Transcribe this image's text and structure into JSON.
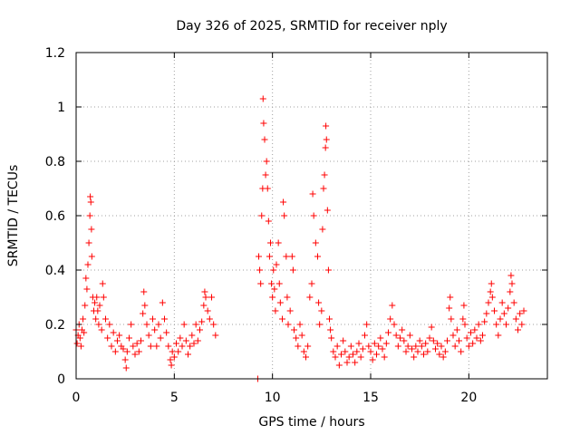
{
  "chart_data": {
    "type": "scatter",
    "title": "Day 326 of 2025, SRMTID for receiver nply",
    "xlabel": "GPS time / hours",
    "ylabel": "SRMTID / TECUs",
    "xlim": [
      0,
      24
    ],
    "ylim": [
      0,
      1.2
    ],
    "xticks": [
      0,
      5,
      10,
      15,
      20
    ],
    "xtick_labels": [
      "0",
      "5",
      "10",
      "15",
      "20"
    ],
    "yticks": [
      0,
      0.2,
      0.4,
      0.6,
      0.8,
      1,
      1.2
    ],
    "ytick_labels": [
      "0",
      "0.2",
      "0.4",
      "0.6",
      "0.8",
      "1",
      "1.2"
    ],
    "grid": true,
    "marker_color": "#ff0000",
    "series": [
      {
        "name": "SRMTID",
        "marker": "+",
        "points": [
          [
            0.0,
            0.18
          ],
          [
            0.05,
            0.13
          ],
          [
            0.1,
            0.16
          ],
          [
            0.15,
            0.2
          ],
          [
            0.2,
            0.15
          ],
          [
            0.25,
            0.12
          ],
          [
            0.3,
            0.18
          ],
          [
            0.35,
            0.22
          ],
          [
            0.4,
            0.17
          ],
          [
            0.45,
            0.27
          ],
          [
            0.5,
            0.37
          ],
          [
            0.55,
            0.33
          ],
          [
            0.6,
            0.42
          ],
          [
            0.65,
            0.5
          ],
          [
            0.7,
            0.6
          ],
          [
            0.72,
            0.67
          ],
          [
            0.75,
            0.65
          ],
          [
            0.78,
            0.55
          ],
          [
            0.8,
            0.45
          ],
          [
            0.85,
            0.3
          ],
          [
            0.9,
            0.25
          ],
          [
            0.95,
            0.28
          ],
          [
            1.0,
            0.22
          ],
          [
            1.05,
            0.3
          ],
          [
            1.1,
            0.25
          ],
          [
            1.15,
            0.2
          ],
          [
            1.2,
            0.27
          ],
          [
            1.3,
            0.18
          ],
          [
            1.35,
            0.35
          ],
          [
            1.4,
            0.3
          ],
          [
            1.5,
            0.22
          ],
          [
            1.6,
            0.15
          ],
          [
            1.7,
            0.2
          ],
          [
            1.8,
            0.12
          ],
          [
            1.9,
            0.17
          ],
          [
            2.0,
            0.1
          ],
          [
            2.1,
            0.14
          ],
          [
            2.2,
            0.16
          ],
          [
            2.3,
            0.12
          ],
          [
            2.4,
            0.11
          ],
          [
            2.5,
            0.07
          ],
          [
            2.55,
            0.04
          ],
          [
            2.6,
            0.1
          ],
          [
            2.7,
            0.15
          ],
          [
            2.8,
            0.2
          ],
          [
            2.9,
            0.12
          ],
          [
            3.0,
            0.09
          ],
          [
            3.1,
            0.13
          ],
          [
            3.2,
            0.1
          ],
          [
            3.3,
            0.14
          ],
          [
            3.4,
            0.24
          ],
          [
            3.45,
            0.32
          ],
          [
            3.5,
            0.27
          ],
          [
            3.6,
            0.2
          ],
          [
            3.7,
            0.16
          ],
          [
            3.8,
            0.12
          ],
          [
            3.9,
            0.22
          ],
          [
            4.0,
            0.18
          ],
          [
            4.1,
            0.12
          ],
          [
            4.2,
            0.2
          ],
          [
            4.3,
            0.15
          ],
          [
            4.4,
            0.28
          ],
          [
            4.5,
            0.22
          ],
          [
            4.6,
            0.17
          ],
          [
            4.7,
            0.12
          ],
          [
            4.8,
            0.07
          ],
          [
            4.85,
            0.05
          ],
          [
            4.9,
            0.1
          ],
          [
            5.0,
            0.08
          ],
          [
            5.1,
            0.13
          ],
          [
            5.2,
            0.1
          ],
          [
            5.3,
            0.15
          ],
          [
            5.4,
            0.12
          ],
          [
            5.5,
            0.2
          ],
          [
            5.6,
            0.14
          ],
          [
            5.7,
            0.09
          ],
          [
            5.8,
            0.12
          ],
          [
            5.9,
            0.16
          ],
          [
            6.0,
            0.13
          ],
          [
            6.1,
            0.2
          ],
          [
            6.2,
            0.14
          ],
          [
            6.3,
            0.18
          ],
          [
            6.4,
            0.21
          ],
          [
            6.5,
            0.27
          ],
          [
            6.55,
            0.32
          ],
          [
            6.6,
            0.3
          ],
          [
            6.7,
            0.25
          ],
          [
            6.8,
            0.22
          ],
          [
            6.9,
            0.3
          ],
          [
            7.0,
            0.2
          ],
          [
            7.1,
            0.16
          ],
          [
            9.25,
            0.0
          ],
          [
            9.3,
            0.45
          ],
          [
            9.35,
            0.4
          ],
          [
            9.4,
            0.35
          ],
          [
            9.45,
            0.6
          ],
          [
            9.5,
            0.7
          ],
          [
            9.52,
            1.03
          ],
          [
            9.55,
            0.94
          ],
          [
            9.6,
            0.88
          ],
          [
            9.65,
            0.75
          ],
          [
            9.7,
            0.8
          ],
          [
            9.75,
            0.7
          ],
          [
            9.8,
            0.58
          ],
          [
            9.85,
            0.45
          ],
          [
            9.9,
            0.5
          ],
          [
            9.95,
            0.35
          ],
          [
            10.0,
            0.3
          ],
          [
            10.05,
            0.4
          ],
          [
            10.1,
            0.33
          ],
          [
            10.15,
            0.25
          ],
          [
            10.2,
            0.42
          ],
          [
            10.3,
            0.5
          ],
          [
            10.35,
            0.35
          ],
          [
            10.4,
            0.28
          ],
          [
            10.5,
            0.22
          ],
          [
            10.55,
            0.65
          ],
          [
            10.6,
            0.6
          ],
          [
            10.7,
            0.45
          ],
          [
            10.75,
            0.3
          ],
          [
            10.8,
            0.2
          ],
          [
            10.9,
            0.25
          ],
          [
            11.0,
            0.45
          ],
          [
            11.05,
            0.4
          ],
          [
            11.1,
            0.18
          ],
          [
            11.2,
            0.15
          ],
          [
            11.3,
            0.12
          ],
          [
            11.4,
            0.2
          ],
          [
            11.5,
            0.16
          ],
          [
            11.6,
            0.1
          ],
          [
            11.7,
            0.08
          ],
          [
            11.8,
            0.12
          ],
          [
            11.9,
            0.3
          ],
          [
            12.0,
            0.35
          ],
          [
            12.05,
            0.68
          ],
          [
            12.1,
            0.6
          ],
          [
            12.2,
            0.5
          ],
          [
            12.3,
            0.45
          ],
          [
            12.35,
            0.28
          ],
          [
            12.4,
            0.2
          ],
          [
            12.5,
            0.25
          ],
          [
            12.55,
            0.55
          ],
          [
            12.6,
            0.7
          ],
          [
            12.65,
            0.75
          ],
          [
            12.7,
            0.85
          ],
          [
            12.72,
            0.93
          ],
          [
            12.75,
            0.88
          ],
          [
            12.8,
            0.62
          ],
          [
            12.85,
            0.4
          ],
          [
            12.9,
            0.22
          ],
          [
            12.95,
            0.18
          ],
          [
            13.0,
            0.15
          ],
          [
            13.1,
            0.1
          ],
          [
            13.2,
            0.08
          ],
          [
            13.3,
            0.12
          ],
          [
            13.4,
            0.05
          ],
          [
            13.5,
            0.09
          ],
          [
            13.6,
            0.14
          ],
          [
            13.7,
            0.1
          ],
          [
            13.8,
            0.06
          ],
          [
            13.9,
            0.08
          ],
          [
            14.0,
            0.12
          ],
          [
            14.1,
            0.09
          ],
          [
            14.2,
            0.06
          ],
          [
            14.3,
            0.1
          ],
          [
            14.4,
            0.13
          ],
          [
            14.5,
            0.08
          ],
          [
            14.6,
            0.11
          ],
          [
            14.7,
            0.16
          ],
          [
            14.8,
            0.2
          ],
          [
            14.9,
            0.12
          ],
          [
            15.0,
            0.1
          ],
          [
            15.1,
            0.07
          ],
          [
            15.2,
            0.13
          ],
          [
            15.3,
            0.09
          ],
          [
            15.4,
            0.12
          ],
          [
            15.5,
            0.15
          ],
          [
            15.6,
            0.11
          ],
          [
            15.7,
            0.08
          ],
          [
            15.8,
            0.13
          ],
          [
            15.9,
            0.17
          ],
          [
            16.0,
            0.22
          ],
          [
            16.1,
            0.27
          ],
          [
            16.2,
            0.2
          ],
          [
            16.3,
            0.16
          ],
          [
            16.4,
            0.12
          ],
          [
            16.5,
            0.15
          ],
          [
            16.6,
            0.18
          ],
          [
            16.7,
            0.14
          ],
          [
            16.8,
            0.1
          ],
          [
            16.9,
            0.12
          ],
          [
            17.0,
            0.16
          ],
          [
            17.1,
            0.11
          ],
          [
            17.2,
            0.08
          ],
          [
            17.3,
            0.12
          ],
          [
            17.4,
            0.1
          ],
          [
            17.5,
            0.14
          ],
          [
            17.6,
            0.12
          ],
          [
            17.7,
            0.09
          ],
          [
            17.8,
            0.13
          ],
          [
            17.9,
            0.1
          ],
          [
            18.0,
            0.15
          ],
          [
            18.1,
            0.19
          ],
          [
            18.2,
            0.14
          ],
          [
            18.3,
            0.11
          ],
          [
            18.4,
            0.13
          ],
          [
            18.5,
            0.09
          ],
          [
            18.6,
            0.12
          ],
          [
            18.7,
            0.08
          ],
          [
            18.8,
            0.1
          ],
          [
            18.9,
            0.14
          ],
          [
            19.0,
            0.26
          ],
          [
            19.05,
            0.3
          ],
          [
            19.1,
            0.22
          ],
          [
            19.2,
            0.16
          ],
          [
            19.3,
            0.12
          ],
          [
            19.4,
            0.18
          ],
          [
            19.5,
            0.14
          ],
          [
            19.6,
            0.1
          ],
          [
            19.7,
            0.22
          ],
          [
            19.75,
            0.27
          ],
          [
            19.8,
            0.2
          ],
          [
            19.9,
            0.15
          ],
          [
            20.0,
            0.12
          ],
          [
            20.1,
            0.17
          ],
          [
            20.2,
            0.13
          ],
          [
            20.3,
            0.18
          ],
          [
            20.4,
            0.15
          ],
          [
            20.5,
            0.2
          ],
          [
            20.6,
            0.14
          ],
          [
            20.7,
            0.16
          ],
          [
            20.8,
            0.21
          ],
          [
            20.9,
            0.24
          ],
          [
            21.0,
            0.28
          ],
          [
            21.1,
            0.32
          ],
          [
            21.15,
            0.35
          ],
          [
            21.2,
            0.3
          ],
          [
            21.3,
            0.25
          ],
          [
            21.4,
            0.2
          ],
          [
            21.5,
            0.16
          ],
          [
            21.6,
            0.22
          ],
          [
            21.7,
            0.28
          ],
          [
            21.8,
            0.24
          ],
          [
            21.9,
            0.2
          ],
          [
            22.0,
            0.26
          ],
          [
            22.1,
            0.32
          ],
          [
            22.15,
            0.38
          ],
          [
            22.2,
            0.35
          ],
          [
            22.3,
            0.28
          ],
          [
            22.4,
            0.22
          ],
          [
            22.5,
            0.18
          ],
          [
            22.6,
            0.24
          ],
          [
            22.7,
            0.2
          ],
          [
            22.8,
            0.25
          ]
        ]
      }
    ]
  }
}
